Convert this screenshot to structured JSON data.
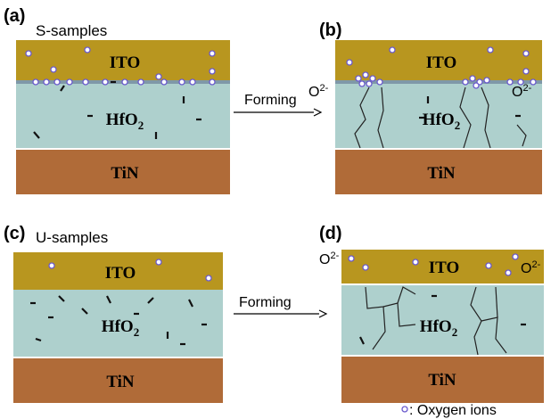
{
  "panels": [
    {
      "label": "(a)",
      "sample": "S-samples",
      "top": "ITO",
      "middle": {
        "base": "HfO",
        "sub": "2"
      },
      "bottom": "TiN"
    },
    {
      "label": "(b)",
      "top": "ITO",
      "middle": {
        "base": "HfO",
        "sub": "2"
      },
      "bottom": "TiN",
      "ion_labels": [
        {
          "base": "O",
          "sup": "2-"
        },
        {
          "base": "O",
          "sup": "2-"
        }
      ]
    },
    {
      "label": "(c)",
      "sample": "U-samples",
      "top": "ITO",
      "middle": {
        "base": "HfO",
        "sub": "2"
      },
      "bottom": "TiN"
    },
    {
      "label": "(d)",
      "top": "ITO",
      "middle": {
        "base": "HfO",
        "sub": "2"
      },
      "bottom": "TiN",
      "ion_labels": [
        {
          "base": "O",
          "sup": "2-"
        },
        {
          "base": "O",
          "sup": "2-"
        }
      ]
    }
  ],
  "arrows": [
    "Forming",
    "Forming"
  ],
  "legend": ": Oxygen ions"
}
